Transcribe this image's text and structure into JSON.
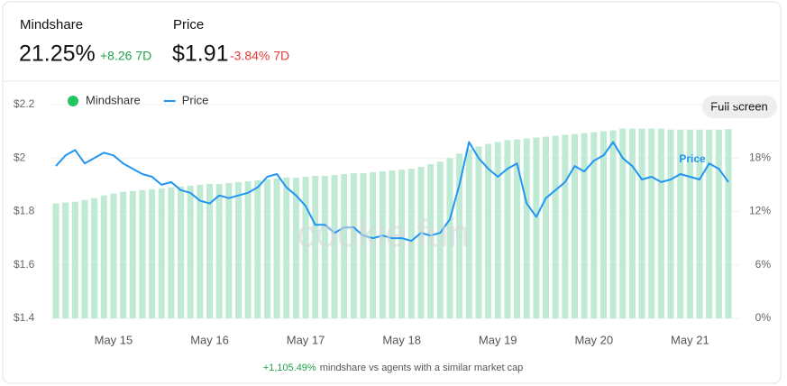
{
  "header": {
    "mindshare_label": "Mindshare",
    "mindshare_value": "21.25%",
    "mindshare_change": "+8.26 7D",
    "price_label": "Price",
    "price_value": "$1.91",
    "price_change": "-3.84% 7D"
  },
  "ui": {
    "full_screen": "Full screen",
    "watermark": "cookie.fun"
  },
  "footer": {
    "highlight": "+1,105.49%",
    "text": "mindshare vs agents with a similar market cap"
  },
  "chart_data": {
    "type": "combo",
    "categories": [
      null,
      null,
      null,
      null,
      null,
      null,
      "May 15",
      null,
      null,
      null,
      null,
      null,
      null,
      null,
      null,
      null,
      "May 16",
      null,
      null,
      null,
      null,
      null,
      null,
      null,
      null,
      null,
      "May 17",
      null,
      null,
      null,
      null,
      null,
      null,
      null,
      null,
      null,
      "May 18",
      null,
      null,
      null,
      null,
      null,
      null,
      null,
      null,
      null,
      "May 19",
      null,
      null,
      null,
      null,
      null,
      null,
      null,
      null,
      null,
      "May 20",
      null,
      null,
      null,
      null,
      null,
      null,
      null,
      null,
      null,
      "May 21",
      null,
      null,
      null,
      null
    ],
    "series": [
      {
        "name": "Mindshare",
        "type": "bar",
        "axis": "y2",
        "color": "#bfead3",
        "legend_color": "#22c55e",
        "values": [
          12.9,
          13.0,
          13.1,
          13.3,
          13.5,
          13.8,
          14.0,
          14.2,
          14.3,
          14.4,
          14.5,
          14.6,
          14.7,
          14.8,
          14.9,
          15.0,
          15.1,
          15.1,
          15.2,
          15.3,
          15.4,
          15.5,
          15.6,
          15.7,
          15.8,
          15.8,
          15.9,
          16.0,
          16.0,
          16.1,
          16.2,
          16.3,
          16.3,
          16.4,
          16.5,
          16.6,
          16.7,
          16.8,
          17.0,
          17.3,
          17.6,
          18.0,
          18.5,
          19.0,
          19.3,
          19.6,
          19.8,
          20.0,
          20.1,
          20.2,
          20.3,
          20.4,
          20.5,
          20.6,
          20.7,
          20.8,
          20.9,
          21.0,
          21.1,
          21.3,
          21.3,
          21.3,
          21.3,
          21.3,
          21.2,
          21.2,
          21.2,
          21.2,
          21.2,
          21.2,
          21.25
        ]
      },
      {
        "name": "Price",
        "type": "line",
        "color": "#2196f3",
        "values": [
          1.97,
          2.01,
          2.03,
          1.98,
          2.0,
          2.02,
          2.01,
          1.98,
          1.96,
          1.94,
          1.93,
          1.9,
          1.91,
          1.88,
          1.87,
          1.84,
          1.83,
          1.86,
          1.85,
          1.86,
          1.87,
          1.89,
          1.93,
          1.94,
          1.89,
          1.86,
          1.82,
          1.75,
          1.75,
          1.72,
          1.74,
          1.74,
          1.71,
          1.7,
          1.71,
          1.7,
          1.7,
          1.69,
          1.72,
          1.71,
          1.72,
          1.77,
          1.9,
          2.06,
          2.0,
          1.96,
          1.93,
          1.96,
          1.98,
          1.83,
          1.78,
          1.85,
          1.88,
          1.91,
          1.97,
          1.95,
          1.99,
          2.01,
          2.06,
          2.0,
          1.97,
          1.92,
          1.93,
          1.91,
          1.92,
          1.94,
          1.93,
          1.92,
          1.98,
          1.96,
          1.91
        ]
      }
    ],
    "ylim": [
      1.4,
      2.2
    ],
    "yticks": [
      {
        "value": 1.4,
        "label": "$1.4"
      },
      {
        "value": 1.6,
        "label": "$1.6"
      },
      {
        "value": 1.8,
        "label": "$1.8"
      },
      {
        "value": 2,
        "label": "$2"
      },
      {
        "value": 2.2,
        "label": "$2.2"
      }
    ],
    "y2lim": [
      0,
      24
    ],
    "y2ticks": [
      {
        "value": 0,
        "label": "0%"
      },
      {
        "value": 6,
        "label": "6%"
      },
      {
        "value": 12,
        "label": "12%"
      },
      {
        "value": 18,
        "label": "18%"
      }
    ],
    "grid": true
  }
}
